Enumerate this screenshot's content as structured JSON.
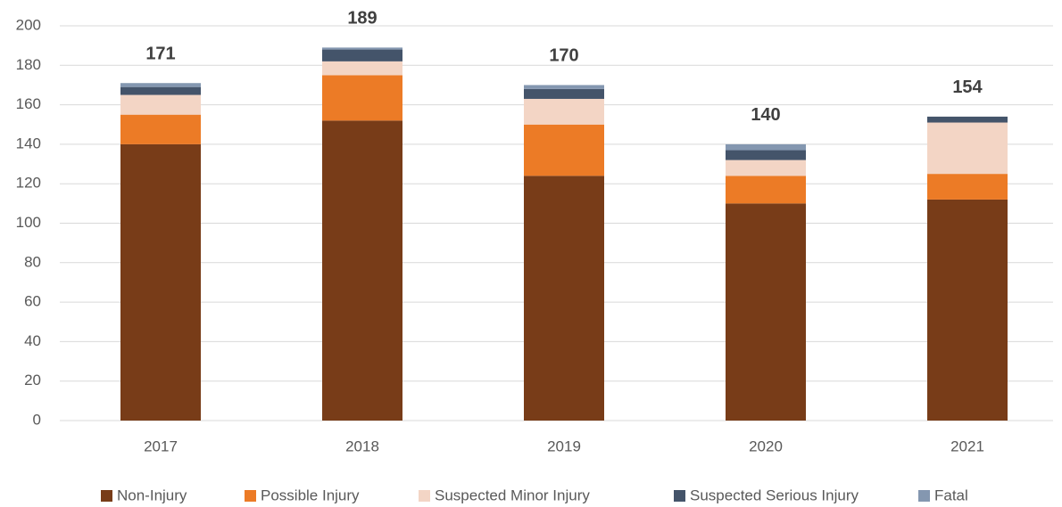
{
  "chart_data": {
    "type": "stacked_bar",
    "categories": [
      "2017",
      "2018",
      "2019",
      "2020",
      "2021"
    ],
    "series": [
      {
        "name": "Non-Injury",
        "color": "#783c18",
        "values": [
          140,
          152,
          124,
          110,
          112
        ]
      },
      {
        "name": "Possible Injury",
        "color": "#ec7b26",
        "values": [
          15,
          23,
          26,
          14,
          13
        ]
      },
      {
        "name": "Suspected Minor Injury",
        "color": "#f3d5c5",
        "values": [
          10,
          7,
          13,
          8,
          26
        ]
      },
      {
        "name": "Suspected Serious Injury",
        "color": "#44546a",
        "values": [
          4,
          6,
          5,
          5,
          3
        ]
      },
      {
        "name": "Fatal",
        "color": "#8497b0",
        "values": [
          2,
          1,
          2,
          3,
          0
        ]
      }
    ],
    "totals": [
      171,
      189,
      170,
      140,
      154
    ],
    "ylim": [
      0,
      200
    ],
    "yticks": [
      0,
      20,
      40,
      60,
      80,
      100,
      120,
      140,
      160,
      180,
      200
    ],
    "grid": true,
    "legend": "bottom"
  }
}
